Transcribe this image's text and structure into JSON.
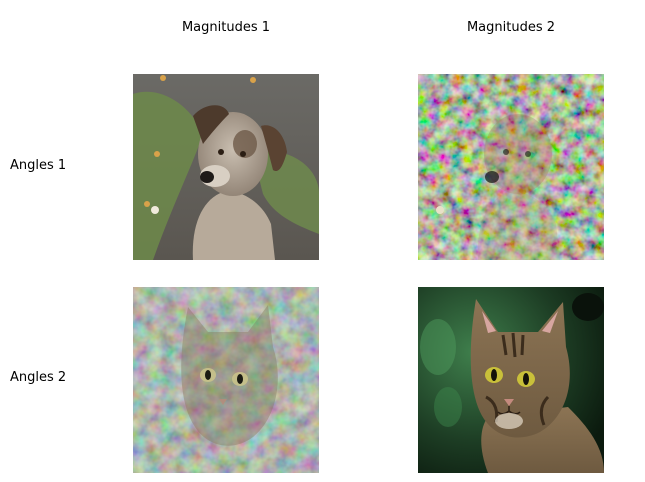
{
  "columns": [
    "Magnitudes 1",
    "Magnitudes 2"
  ],
  "rows": [
    "Angles 1",
    "Angles 2"
  ],
  "panels": [
    {
      "subject": "dog",
      "style": "original"
    },
    {
      "subject": "dog",
      "style": "noisy-mix"
    },
    {
      "subject": "cat",
      "style": "noisy-mix"
    },
    {
      "subject": "cat",
      "style": "original"
    }
  ]
}
